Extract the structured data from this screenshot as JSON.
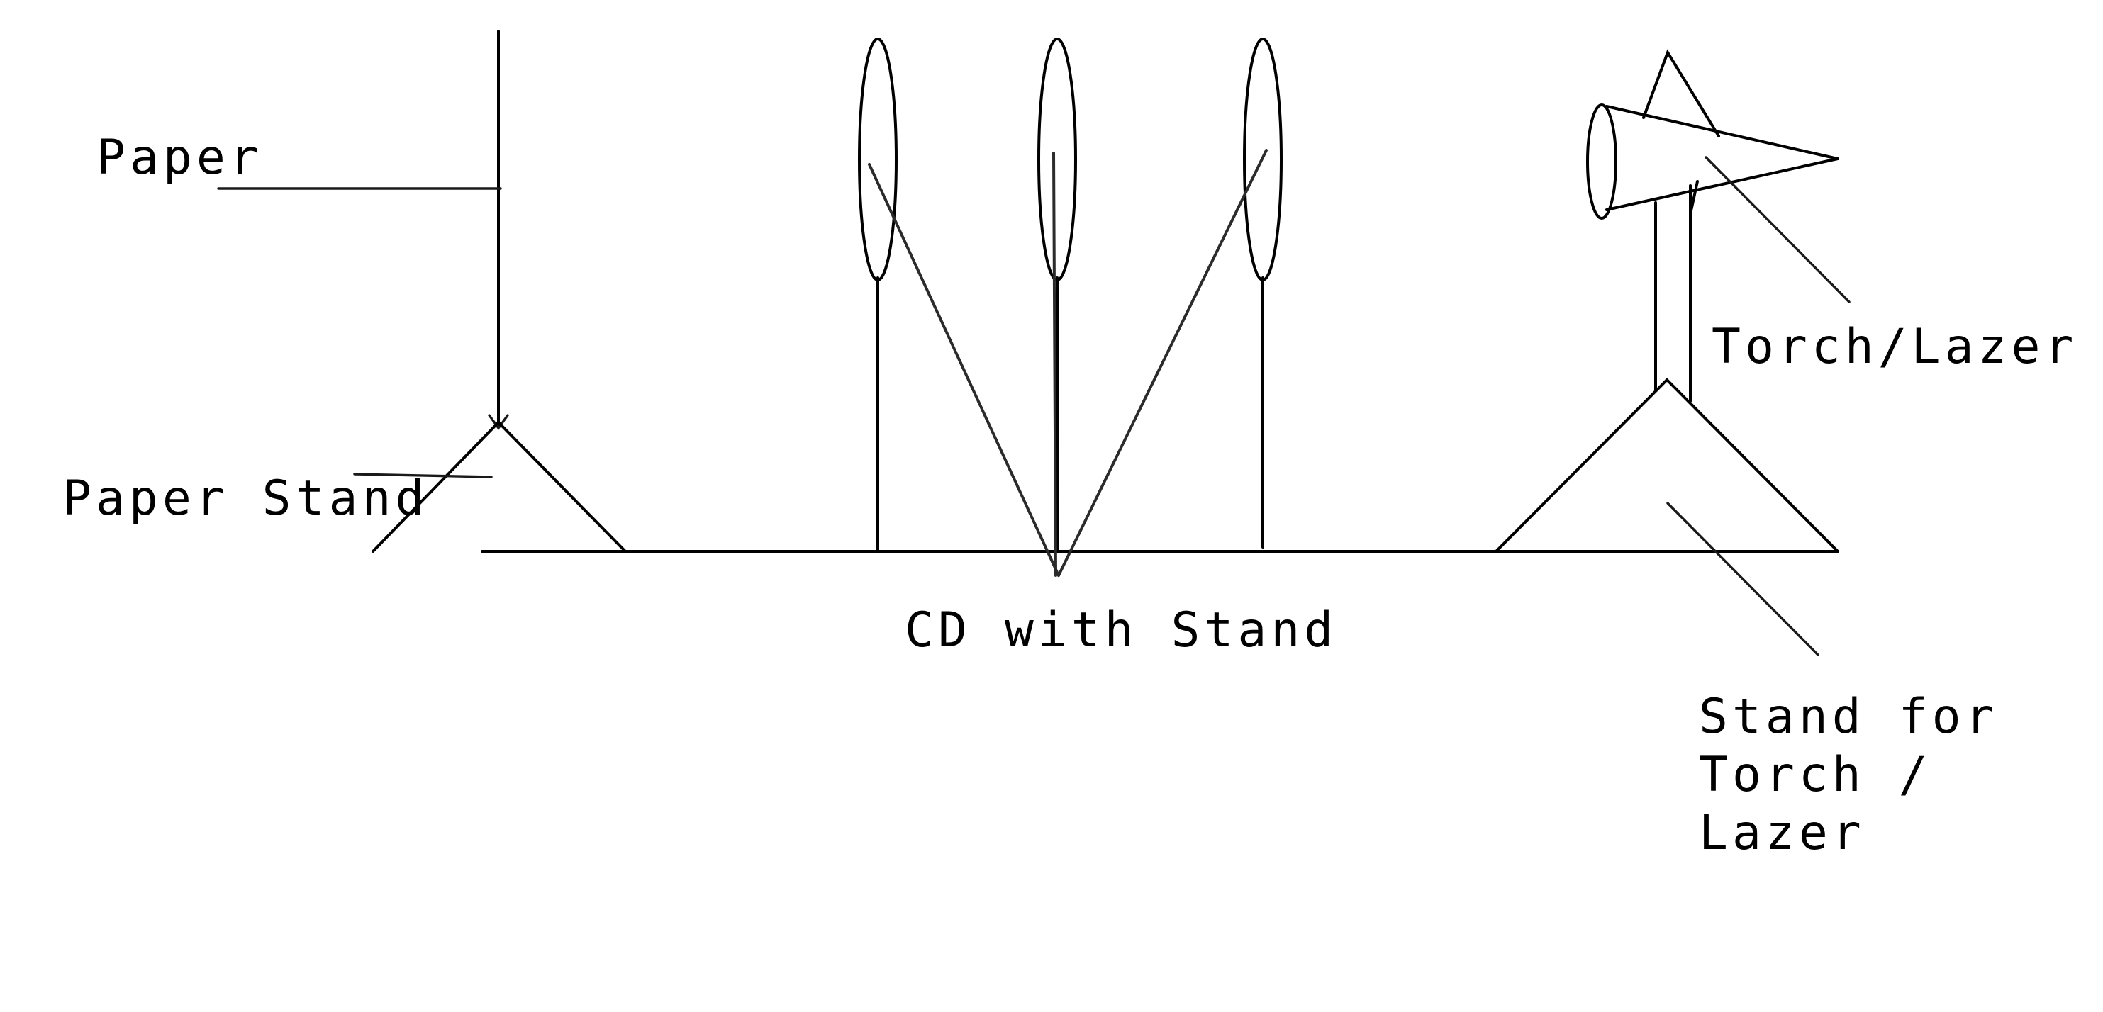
{
  "labels": {
    "paper": "Paper",
    "paper_stand": "Paper Stand",
    "cd_with_stand": "CD with Stand",
    "torch_lazer": "Torch/Lazer",
    "stand_for_torch_line1": "Stand for",
    "stand_for_torch_line2": "Torch /",
    "stand_for_torch_line3": "Lazer"
  },
  "colors": {
    "ink": "#000000",
    "background": "#ffffff"
  }
}
